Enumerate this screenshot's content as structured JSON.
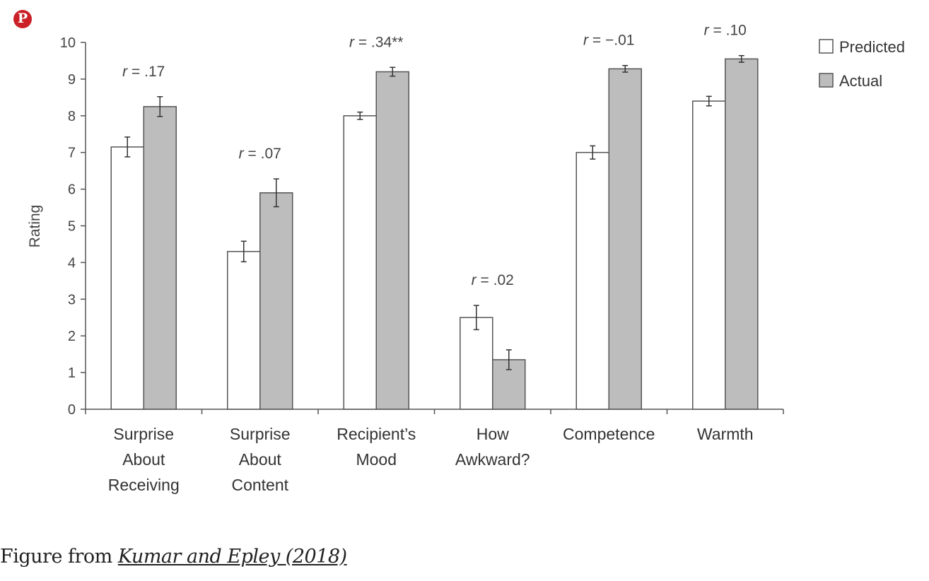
{
  "share": {
    "icon": "pinterest-icon",
    "glyph": "P",
    "color": "#cb2027"
  },
  "chart_data": {
    "type": "bar",
    "xlabel": "",
    "ylabel": "Rating",
    "ylim": [
      0,
      10
    ],
    "yticks": [
      0,
      1,
      2,
      3,
      4,
      5,
      6,
      7,
      8,
      9,
      10
    ],
    "grid": false,
    "legend_position": "top-right",
    "categories": [
      [
        "Surprise",
        "About",
        "Receiving"
      ],
      [
        "Surprise",
        "About",
        "Content"
      ],
      [
        "Recipient’s",
        "Mood"
      ],
      [
        "How",
        "Awkward?"
      ],
      [
        "Competence"
      ],
      [
        "Warmth"
      ]
    ],
    "series": [
      {
        "name": "Predicted",
        "color": "#ffffff",
        "values": [
          7.15,
          4.3,
          8.0,
          2.5,
          7.0,
          8.4
        ],
        "errors": [
          0.27,
          0.28,
          0.1,
          0.33,
          0.18,
          0.13
        ]
      },
      {
        "name": "Actual",
        "color": "#bdbdbd",
        "values": [
          8.25,
          5.9,
          9.2,
          1.35,
          9.28,
          9.55
        ],
        "errors": [
          0.27,
          0.38,
          0.12,
          0.27,
          0.09,
          0.09
        ]
      }
    ],
    "annotations": [
      {
        "italic": "r",
        "rest": " = .17"
      },
      {
        "italic": "r",
        "rest": " = .07"
      },
      {
        "italic": "r",
        "rest": " = .34**"
      },
      {
        "italic": "r",
        "rest": " = .02"
      },
      {
        "italic": "r",
        "rest": " = −.01"
      },
      {
        "italic": "r",
        "rest": " = .10"
      }
    ]
  },
  "caption": {
    "prefix": "Figure from ",
    "link_text": "Kumar and Epley (2018)"
  }
}
